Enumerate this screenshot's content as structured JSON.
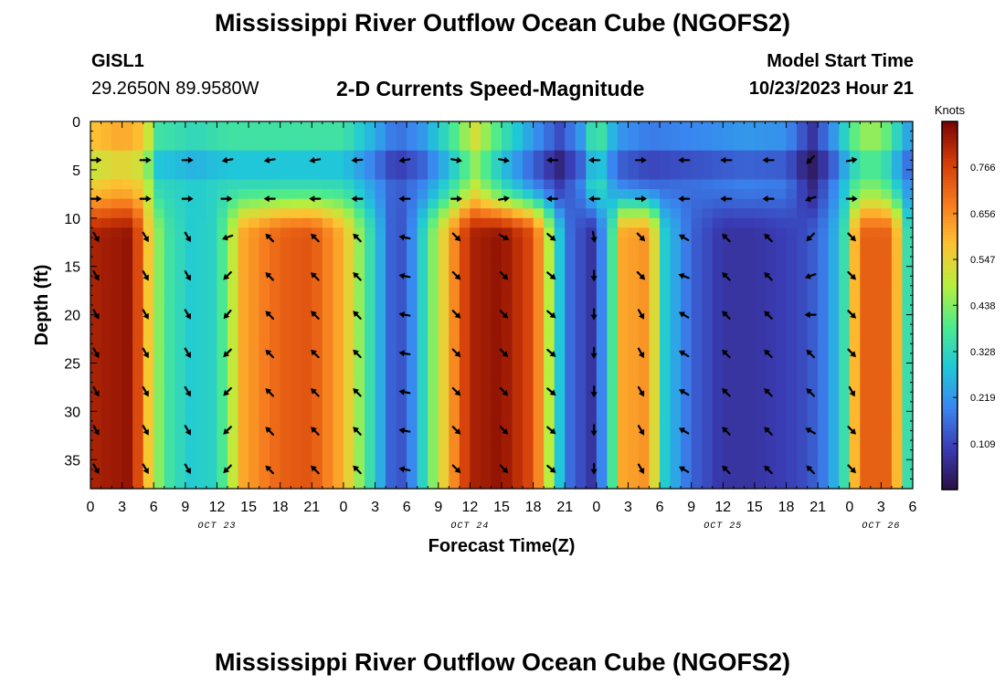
{
  "header": {
    "title": "Mississippi River Outflow Ocean Cube (NGOFS2)",
    "station_id": "GISL1",
    "coords": "29.2650N  89.9580W",
    "subtitle": "2-D Currents Speed-Magnitude",
    "model_start_label": "Model Start Time",
    "model_start_value": "10/23/2023 Hour 21"
  },
  "footer": {
    "title": "Mississippi River Outflow Ocean Cube (NGOFS2)"
  },
  "chart_data": {
    "type": "heatmap",
    "title": "2-D Currents Speed-Magnitude",
    "xlabel": "Forecast Time(Z)",
    "ylabel": "Depth (ft)",
    "x_hours_range": [
      0,
      78
    ],
    "ylim": [
      0,
      38
    ],
    "x_tick_labels": [
      "0",
      "3",
      "6",
      "9",
      "12",
      "15",
      "18",
      "21",
      "0",
      "3",
      "6",
      "9",
      "12",
      "15",
      "18",
      "21",
      "0",
      "3",
      "6",
      "9",
      "12",
      "15",
      "18",
      "21",
      "0",
      "3",
      "6"
    ],
    "y_ticks": [
      0,
      5,
      10,
      15,
      20,
      25,
      30,
      35
    ],
    "date_labels": [
      {
        "label": "OCT 23",
        "hour": 12
      },
      {
        "label": "OCT 24",
        "hour": 36
      },
      {
        "label": "OCT 25",
        "hour": 60
      },
      {
        "label": "OCT 26",
        "hour": 75
      }
    ],
    "colorbar": {
      "label": "Knots",
      "min": 0.0,
      "max": 0.875,
      "ticks": [
        0.109,
        0.219,
        0.328,
        0.438,
        0.547,
        0.656,
        0.766
      ],
      "colors": [
        "#2c0f45",
        "#3a3cb4",
        "#3a86f0",
        "#20c8d8",
        "#4eeb8c",
        "#b8ee3e",
        "#fdc232",
        "#f67a1e",
        "#d23c08",
        "#7a0403"
      ]
    },
    "surface_speed_by_hour": [
      [
        0,
        0.58
      ],
      [
        3,
        0.62
      ],
      [
        5,
        0.58
      ],
      [
        6.5,
        0.36
      ],
      [
        10,
        0.33
      ],
      [
        13,
        0.36
      ],
      [
        16,
        0.36
      ],
      [
        21,
        0.36
      ],
      [
        24,
        0.36
      ],
      [
        27,
        0.25
      ],
      [
        29,
        0.16
      ],
      [
        31.5,
        0.22
      ],
      [
        34,
        0.35
      ],
      [
        36.5,
        0.52
      ],
      [
        39,
        0.36
      ],
      [
        42,
        0.22
      ],
      [
        44.5,
        0.12
      ],
      [
        46.5,
        0.22
      ],
      [
        48,
        0.4
      ],
      [
        50,
        0.22
      ],
      [
        53,
        0.18
      ],
      [
        58,
        0.2
      ],
      [
        62,
        0.22
      ],
      [
        66,
        0.21
      ],
      [
        68.5,
        0.08
      ],
      [
        70.5,
        0.22
      ],
      [
        73,
        0.45
      ],
      [
        75,
        0.45
      ],
      [
        78,
        0.2
      ]
    ],
    "deep_speed_by_hour": [
      [
        0,
        0.82
      ],
      [
        4,
        0.85
      ],
      [
        6,
        0.48
      ],
      [
        7.5,
        0.36
      ],
      [
        9.5,
        0.3
      ],
      [
        12,
        0.32
      ],
      [
        14.5,
        0.62
      ],
      [
        18,
        0.72
      ],
      [
        21,
        0.74
      ],
      [
        24,
        0.6
      ],
      [
        26,
        0.4
      ],
      [
        28,
        0.2
      ],
      [
        29,
        0.1
      ],
      [
        30.5,
        0.2
      ],
      [
        33,
        0.5
      ],
      [
        36,
        0.82
      ],
      [
        39,
        0.85
      ],
      [
        42,
        0.75
      ],
      [
        44,
        0.4
      ],
      [
        45,
        0.18
      ],
      [
        47.5,
        0.08
      ],
      [
        49,
        0.25
      ],
      [
        50.5,
        0.62
      ],
      [
        53,
        0.65
      ],
      [
        54.5,
        0.3
      ],
      [
        57,
        0.15
      ],
      [
        60,
        0.08
      ],
      [
        63,
        0.08
      ],
      [
        66,
        0.1
      ],
      [
        68,
        0.12
      ],
      [
        70,
        0.2
      ],
      [
        71.5,
        0.35
      ],
      [
        73,
        0.72
      ],
      [
        76,
        0.72
      ],
      [
        77.5,
        0.35
      ],
      [
        78,
        0.3
      ]
    ],
    "vector_depths_ft": [
      4,
      8,
      12,
      16,
      20,
      24,
      28,
      32,
      36
    ],
    "vector_columns": [
      {
        "hour": 0.3,
        "dirs": [
          0,
          0,
          300,
          300,
          300,
          300,
          300,
          300,
          300
        ]
      },
      {
        "hour": 5,
        "dirs": [
          0,
          0,
          300,
          300,
          300,
          300,
          300,
          300,
          300
        ]
      },
      {
        "hour": 9,
        "dirs": [
          0,
          0,
          300,
          300,
          300,
          300,
          300,
          300,
          300
        ]
      },
      {
        "hour": 12.7,
        "dirs": [
          190,
          0,
          200,
          225,
          230,
          225,
          225,
          225,
          225
        ]
      },
      {
        "hour": 16.7,
        "dirs": [
          190,
          180,
          135,
          135,
          135,
          135,
          135,
          135,
          135
        ]
      },
      {
        "hour": 21,
        "dirs": [
          190,
          180,
          135,
          135,
          135,
          135,
          135,
          135,
          135
        ]
      },
      {
        "hour": 25,
        "dirs": [
          185,
          180,
          135,
          135,
          135,
          135,
          135,
          135,
          135
        ]
      },
      {
        "hour": 29.5,
        "dirs": [
          190,
          180,
          170,
          170,
          170,
          170,
          170,
          170,
          170
        ]
      },
      {
        "hour": 34.5,
        "dirs": [
          350,
          0,
          315,
          315,
          315,
          315,
          315,
          315,
          315
        ]
      },
      {
        "hour": 39,
        "dirs": [
          350,
          10,
          330,
          315,
          315,
          315,
          315,
          315,
          315
        ]
      },
      {
        "hour": 43.5,
        "dirs": [
          180,
          180,
          320,
          320,
          320,
          320,
          320,
          320,
          320
        ]
      },
      {
        "hour": 47.5,
        "dirs": [
          180,
          180,
          280,
          270,
          270,
          270,
          270,
          270,
          270
        ]
      },
      {
        "hour": 52,
        "dirs": [
          0,
          0,
          315,
          315,
          300,
          300,
          300,
          300,
          300
        ]
      },
      {
        "hour": 56,
        "dirs": [
          180,
          180,
          150,
          160,
          150,
          150,
          150,
          150,
          150
        ]
      },
      {
        "hour": 60,
        "dirs": [
          180,
          180,
          135,
          135,
          135,
          135,
          135,
          135,
          135
        ]
      },
      {
        "hour": 64,
        "dirs": [
          180,
          180,
          135,
          135,
          135,
          135,
          135,
          135,
          135
        ]
      },
      {
        "hour": 68,
        "dirs": [
          225,
          200,
          225,
          200,
          180,
          135,
          135,
          150,
          135
        ]
      },
      {
        "hour": 72,
        "dirs": [
          10,
          0,
          315,
          315,
          315,
          315,
          300,
          315,
          315
        ]
      }
    ]
  }
}
